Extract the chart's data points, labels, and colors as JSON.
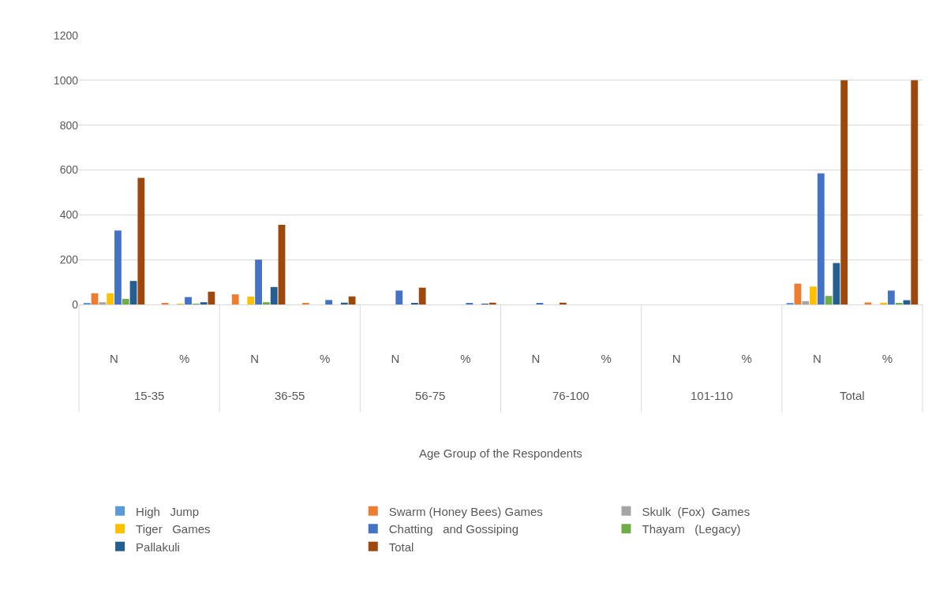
{
  "chart_data": {
    "type": "bar",
    "categories": [
      "N",
      "%",
      "N",
      "%",
      "N",
      "%",
      "N",
      "%",
      "N",
      "%",
      "N",
      "%"
    ],
    "annotations": [
      "15-35",
      "36-55",
      "56-75",
      "76-100",
      "101-110",
      "Total",
      "Age Group of the Respondents"
    ],
    "series": [
      {
        "name": "High   Jump",
        "color": "#5b9bd5",
        "values": [
          5,
          0,
          0,
          0,
          0,
          0,
          0,
          0,
          0,
          0,
          5,
          0
        ]
      },
      {
        "name": "Swarm (Honey Bees) Games",
        "color": "#ed7d31",
        "values": [
          50,
          5,
          45,
          5,
          0,
          0,
          0,
          0,
          0,
          0,
          93,
          9
        ]
      },
      {
        "name": "Skulk  (Fox)  Games",
        "color": "#a5a5a5",
        "values": [
          10,
          0,
          0,
          0,
          0,
          0,
          0,
          0,
          0,
          0,
          15,
          null
        ]
      },
      {
        "name": "Tiger   Games",
        "color": "#ffc000",
        "values": [
          50,
          3,
          35,
          0,
          0,
          0,
          0,
          0,
          0,
          0,
          80,
          8
        ]
      },
      {
        "name": "Chatting   and Gossiping",
        "color": "#4472c4",
        "values": [
          330,
          33,
          200,
          20,
          62,
          6,
          6,
          0,
          0,
          0,
          585,
          62
        ]
      },
      {
        "name": "Thayam   (Legacy)",
        "color": "#70ad47",
        "values": [
          25,
          2,
          10,
          0,
          0,
          0,
          0,
          0,
          0,
          0,
          38,
          4
        ]
      },
      {
        "name": "Pallakuli",
        "color": "#255e91",
        "values": [
          105,
          10,
          78,
          8,
          5,
          1,
          0,
          0,
          0,
          0,
          185,
          19
        ]
      },
      {
        "name": "Total",
        "color": "#9e480e",
        "values": [
          565,
          57,
          355,
          36,
          75,
          8,
          8,
          0,
          0,
          0,
          1000,
          1000
        ]
      }
    ],
    "ylim": [
      0,
      1200
    ],
    "yticks": [
      0,
      200,
      400,
      600,
      800,
      1000,
      1200
    ],
    "grid": "y",
    "legend": "bottom"
  }
}
